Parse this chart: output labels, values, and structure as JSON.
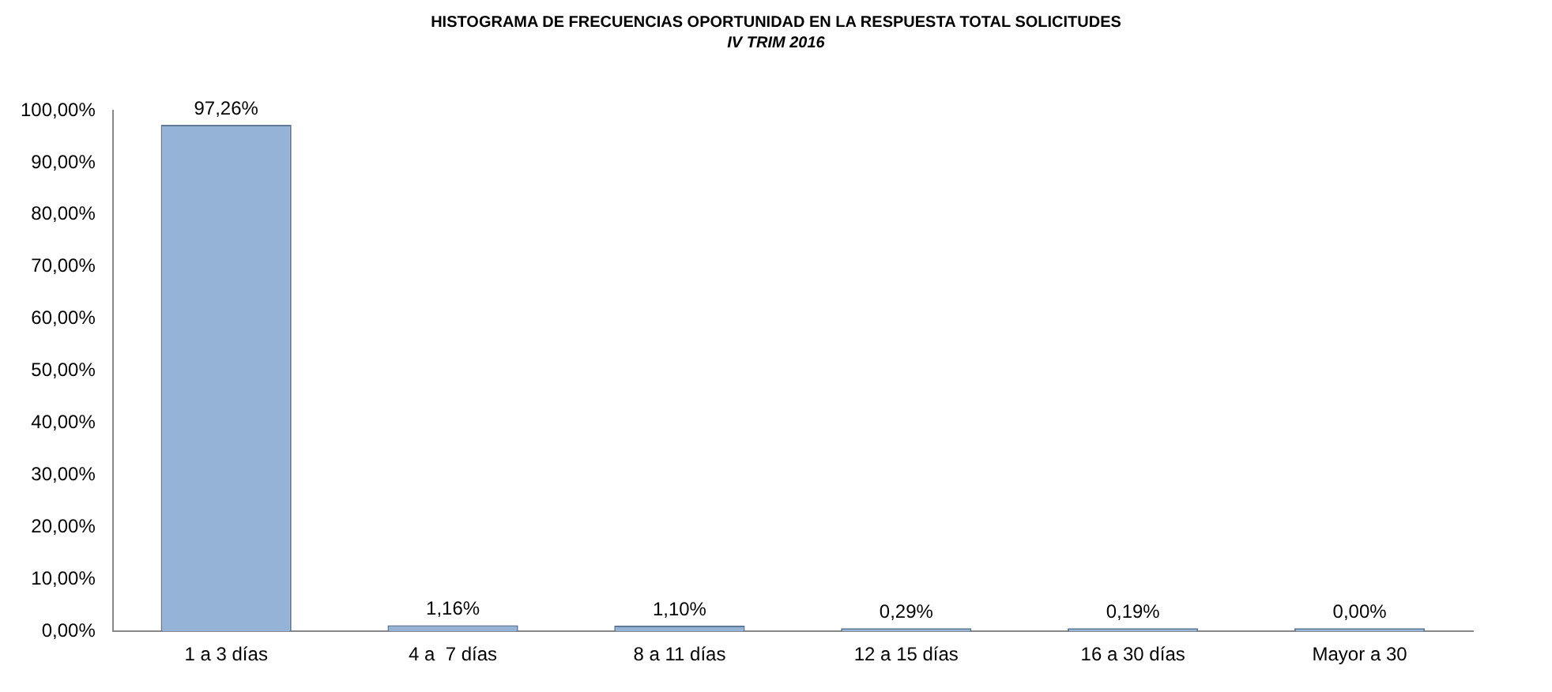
{
  "chart_data": {
    "type": "bar",
    "title": "HISTOGRAMA DE FRECUENCIAS OPORTUNIDAD EN LA RESPUESTA TOTAL SOLICITUDES",
    "subtitle": "IV TRIM 2016",
    "categories": [
      "1 a 3 días",
      "4 a  7 días",
      "8 a 11 días",
      "12 a 15 días",
      "16 a 30 días",
      "Mayor a 30"
    ],
    "values": [
      97.26,
      1.16,
      1.1,
      0.29,
      0.19,
      0.0
    ],
    "value_labels": [
      "97,26%",
      "1,16%",
      "1,10%",
      "0,29%",
      "0,19%",
      "0,00%"
    ],
    "color": "#95b3d7",
    "ylim": [
      0,
      100
    ],
    "yticks": [
      {
        "value": 0,
        "label": "0,00%"
      },
      {
        "value": 10,
        "label": "10,00%"
      },
      {
        "value": 20,
        "label": "20,00%"
      },
      {
        "value": 30,
        "label": "30,00%"
      },
      {
        "value": 40,
        "label": "40,00%"
      },
      {
        "value": 50,
        "label": "50,00%"
      },
      {
        "value": 60,
        "label": "60,00%"
      },
      {
        "value": 70,
        "label": "70,00%"
      },
      {
        "value": 80,
        "label": "80,00%"
      },
      {
        "value": 90,
        "label": "90,00%"
      },
      {
        "value": 100,
        "label": "100,00%"
      }
    ],
    "grid": false,
    "legend": false
  }
}
